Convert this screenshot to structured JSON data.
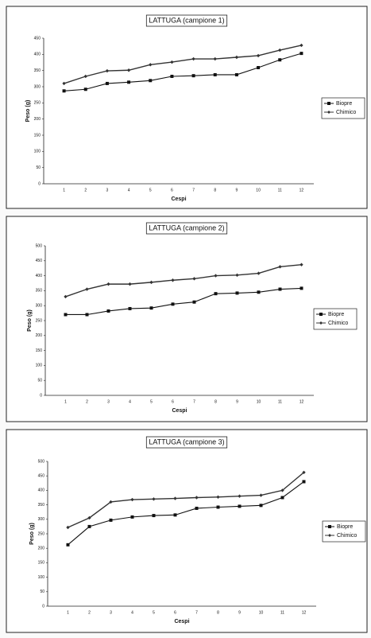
{
  "chart_data": [
    {
      "type": "line",
      "title": "LATTUGA (campione 1)",
      "x_label": "Cespi",
      "y_label": "Peso (g)",
      "categories": [
        "1",
        "2",
        "3",
        "4",
        "5",
        "6",
        "7",
        "8",
        "9",
        "10",
        "11",
        "12"
      ],
      "series": [
        {
          "name": "Biopre",
          "color": "#111111",
          "marker": "square",
          "values": [
            287,
            292,
            310,
            314,
            319,
            332,
            334,
            337,
            337,
            359,
            383,
            403
          ]
        },
        {
          "name": "Chimico",
          "color": "#333333",
          "marker": "diamond",
          "values": [
            310,
            332,
            349,
            351,
            368,
            376,
            386,
            386,
            391,
            396,
            413,
            428
          ]
        }
      ],
      "ylim": [
        0,
        450
      ],
      "yticks": [
        0,
        50,
        100,
        150,
        200,
        250,
        300,
        350,
        400,
        450
      ],
      "grid": false,
      "legend": "right"
    },
    {
      "type": "line",
      "title": "LATTUGA (campione 2)",
      "x_label": "Cespi",
      "y_label": "Peso (g)",
      "categories": [
        "1",
        "2",
        "3",
        "4",
        "5",
        "6",
        "7",
        "8",
        "9",
        "10",
        "11",
        "12"
      ],
      "series": [
        {
          "name": "Biopre",
          "color": "#111111",
          "marker": "square",
          "values": [
            270,
            270,
            282,
            290,
            292,
            305,
            312,
            340,
            342,
            345,
            355,
            358
          ]
        },
        {
          "name": "Chimico",
          "color": "#333333",
          "marker": "diamond",
          "values": [
            330,
            355,
            372,
            372,
            378,
            385,
            390,
            400,
            402,
            408,
            430,
            437
          ]
        }
      ],
      "ylim": [
        0,
        500
      ],
      "yticks": [
        0,
        50,
        100,
        150,
        200,
        250,
        300,
        350,
        400,
        450,
        500
      ],
      "grid": false,
      "legend": "right"
    },
    {
      "type": "line",
      "title": "LATTUGA (campione 3)",
      "x_label": "Cespi",
      "y_label": "Peso (g)",
      "categories": [
        "1",
        "2",
        "3",
        "4",
        "5",
        "6",
        "7",
        "8",
        "9",
        "10",
        "11",
        "12"
      ],
      "series": [
        {
          "name": "Biopre",
          "color": "#111111",
          "marker": "square",
          "values": [
            212,
            275,
            297,
            308,
            313,
            315,
            338,
            342,
            345,
            348,
            375,
            430
          ]
        },
        {
          "name": "Chimico",
          "color": "#333333",
          "marker": "diamond",
          "values": [
            272,
            305,
            360,
            368,
            370,
            372,
            375,
            377,
            380,
            383,
            400,
            462
          ]
        }
      ],
      "ylim": [
        0,
        500
      ],
      "yticks": [
        0,
        50,
        100,
        150,
        200,
        250,
        300,
        350,
        400,
        450,
        500
      ],
      "grid": false,
      "legend": "right"
    }
  ]
}
